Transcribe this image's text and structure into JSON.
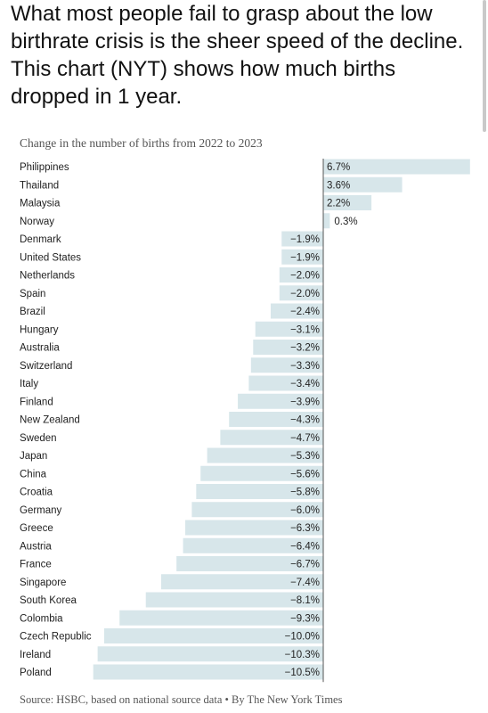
{
  "post": {
    "text": "What most people fail to grasp about the low birthrate crisis is the sheer speed of the decline. This chart (NYT) shows how much births dropped in 1 year."
  },
  "colors": {
    "bar": "#d7e6ea",
    "axis": "#555555",
    "text": "#222222"
  },
  "chart_data": {
    "type": "bar",
    "orientation": "horizontal",
    "title": "Change in the number of births from 2022 to 2023",
    "source": "Source: HSBC, based on national source data • By The New York Times",
    "categories": [
      "Philippines",
      "Thailand",
      "Malaysia",
      "Norway",
      "Denmark",
      "United States",
      "Netherlands",
      "Spain",
      "Brazil",
      "Hungary",
      "Australia",
      "Switzerland",
      "Italy",
      "Finland",
      "New Zealand",
      "Sweden",
      "Japan",
      "China",
      "Croatia",
      "Germany",
      "Greece",
      "Austria",
      "France",
      "Singapore",
      "South Korea",
      "Colombia",
      "Czech Republic",
      "Ireland",
      "Poland"
    ],
    "values": [
      6.7,
      3.6,
      2.2,
      0.3,
      -1.9,
      -1.9,
      -2.0,
      -2.0,
      -2.4,
      -3.1,
      -3.2,
      -3.3,
      -3.4,
      -3.9,
      -4.3,
      -4.7,
      -5.3,
      -5.6,
      -5.8,
      -6.0,
      -6.3,
      -6.4,
      -6.7,
      -7.4,
      -8.1,
      -9.3,
      -10.0,
      -10.3,
      -10.5
    ],
    "labels": [
      "6.7%",
      "3.6%",
      "2.2%",
      "0.3%",
      "−1.9%",
      "−1.9%",
      "−2.0%",
      "−2.0%",
      "−2.4%",
      "−3.1%",
      "−3.2%",
      "−3.3%",
      "−3.4%",
      "−3.9%",
      "−4.3%",
      "−4.7%",
      "−5.3%",
      "−5.6%",
      "−5.8%",
      "−6.0%",
      "−6.3%",
      "−6.4%",
      "−6.7%",
      "−7.4%",
      "−8.1%",
      "−9.3%",
      "−10.0%",
      "−10.3%",
      "−10.5%"
    ],
    "unit": "%",
    "xlim": [
      -10.5,
      6.7
    ]
  }
}
